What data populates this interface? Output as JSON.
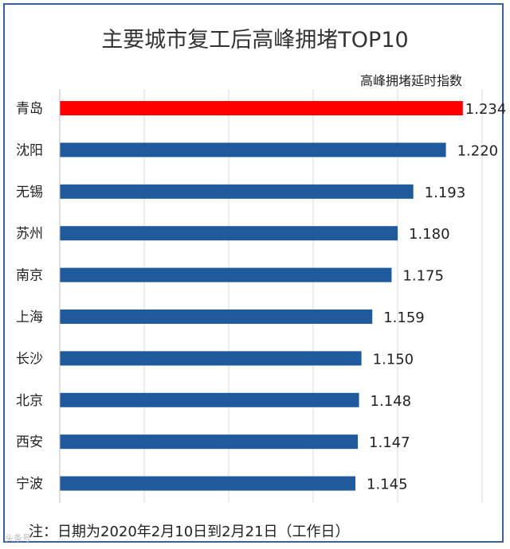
{
  "chart_data": {
    "type": "bar",
    "orientation": "horizontal",
    "title": "主要城市复工后高峰拥堵TOP10",
    "value_label": "高峰拥堵延时指数",
    "categories": [
      "青岛",
      "沈阳",
      "无锡",
      "苏州",
      "南京",
      "上海",
      "长沙",
      "北京",
      "西安",
      "宁波"
    ],
    "values": [
      1.234,
      1.22,
      1.193,
      1.18,
      1.175,
      1.159,
      1.15,
      1.148,
      1.147,
      1.145
    ],
    "value_labels": [
      "1.234",
      "1.220",
      "1.193",
      "1.180",
      "1.175",
      "1.159",
      "1.150",
      "1.148",
      "1.147",
      "1.145"
    ],
    "bar_colors": [
      "#ff0000",
      "#1f5a9c",
      "#1f5a9c",
      "#1f5a9c",
      "#1f5a9c",
      "#1f5a9c",
      "#1f5a9c",
      "#1f5a9c",
      "#1f5a9c",
      "#1f5a9c"
    ],
    "xlim": [
      0.9,
      1.25
    ],
    "grid": true
  },
  "note": "注：日期为2020年2月10日到2月21日（工作日）",
  "watermark": "头条号"
}
